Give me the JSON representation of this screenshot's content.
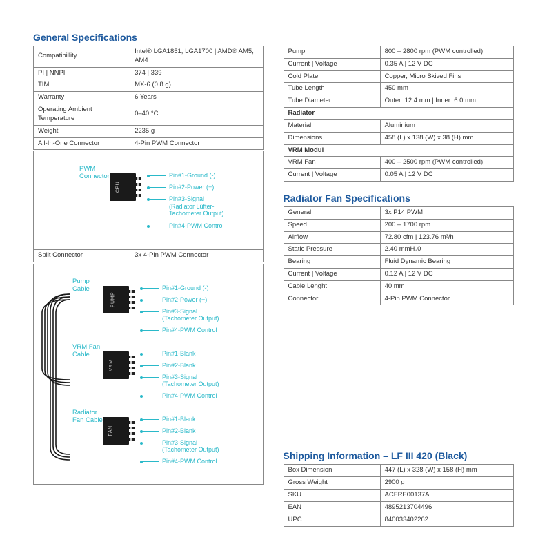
{
  "colors": {
    "heading": "#1e5a9e",
    "accent": "#2AB9C9",
    "border": "#888888",
    "text": "#333333",
    "plug_body": "#1a1a1a",
    "plug_label": "#cccccc"
  },
  "general": {
    "title": "General Specifications",
    "rows": [
      {
        "k": "Compatibillity",
        "v": "Intel® LGA1851, LGA1700 | AMD® AM5, AM4"
      },
      {
        "k": "PI | NNPI",
        "v": "374 | 339"
      },
      {
        "k": "TIM",
        "v": "MX-6 (0.8 g)"
      },
      {
        "k": "Warranty",
        "v": "6 Years"
      },
      {
        "k": "Operating Ambient Temperature",
        "v": "0–40 °C"
      },
      {
        "k": "Weight",
        "v": "2235 g"
      },
      {
        "k": "All-In-One Connector",
        "v": "4-Pin PWM Connector"
      }
    ]
  },
  "diagram1": {
    "connector_label": "PWM Connector",
    "plug_label": "CPU",
    "pins": [
      "Pin#1-Ground (-)",
      "Pin#2-Power (+)",
      "Pin#3-Signal\n(Radiator Lüfter-\nTachometer Output)",
      "Pin#4-PWM Control"
    ]
  },
  "split_row": {
    "k": "Split Connector",
    "v": "3x 4-Pin PWM Connector"
  },
  "diagram2": [
    {
      "label": "Pump Cable",
      "plug": "PUMP",
      "pins": [
        "Pin#1-Ground (-)",
        "Pin#2-Power (+)",
        "Pin#3-Signal\n(Tachometer Output)",
        "Pin#4-PWM Control"
      ]
    },
    {
      "label": "VRM Fan Cable",
      "plug": "VRM",
      "pins": [
        "Pin#1-Blank",
        "Pin#2-Blank",
        "Pin#3-Signal\n(Tachometer Output)",
        "Pin#4-PWM Control"
      ]
    },
    {
      "label": "Radiator Fan Cable",
      "plug": "FAN",
      "pins": [
        "Pin#1-Blank",
        "Pin#2-Blank",
        "Pin#3-Signal\n(Tachometer Output)",
        "Pin#4-PWM Control"
      ]
    }
  ],
  "right_top": {
    "rows": [
      {
        "k": "Pump",
        "v": "800 – 2800 rpm (PWM controlled)"
      },
      {
        "k": "Current | Voltage",
        "v": "0.35 A | 12 V DC"
      },
      {
        "k": "Cold Plate",
        "v": "Copper, Micro Skived Fins"
      },
      {
        "k": "Tube Length",
        "v": "450 mm"
      },
      {
        "k": "Tube Diameter",
        "v": "Outer: 12.4 mm | Inner: 6.0 mm"
      },
      {
        "section": "Radiator"
      },
      {
        "k": "Material",
        "v": "Aluminium"
      },
      {
        "k": "Dimensions",
        "v": "458 (L) x 138 (W) x 38 (H) mm"
      },
      {
        "section": "VRM Modul"
      },
      {
        "k": "VRM Fan",
        "v": "400 – 2500 rpm (PWM controlled)"
      },
      {
        "k": "Current | Voltage",
        "v": "0.05 A | 12 V DC"
      }
    ]
  },
  "radiator_fan": {
    "title": "Radiator Fan Specifications",
    "rows": [
      {
        "k": "General",
        "v": "3x P14 PWM"
      },
      {
        "k": "Speed",
        "v": "200 – 1700 rpm"
      },
      {
        "k": "Airflow",
        "v": "72.80 cfm | 123.76 m³/h"
      },
      {
        "k": "Static Pressure",
        "v": "2.40 mmH₂0"
      },
      {
        "k": "Bearing",
        "v": "Fluid Dynamic Bearing"
      },
      {
        "k": "Current | Voltage",
        "v": "0.12 A | 12 V DC"
      },
      {
        "k": "Cable Lenght",
        "v": "40 mm"
      },
      {
        "k": "Connector",
        "v": "4-Pin PWM Connector"
      }
    ]
  },
  "shipping": {
    "title": "Shipping Information – LF III 420 (Black)",
    "rows": [
      {
        "k": "Box Dimension",
        "v": "447 (L) x 328 (W) x 158 (H) mm"
      },
      {
        "k": "Gross Weight",
        "v": "2900 g"
      },
      {
        "k": "SKU",
        "v": "ACFRE00137A"
      },
      {
        "k": "EAN",
        "v": "4895213704496"
      },
      {
        "k": "UPC",
        "v": "840033402262"
      }
    ]
  }
}
